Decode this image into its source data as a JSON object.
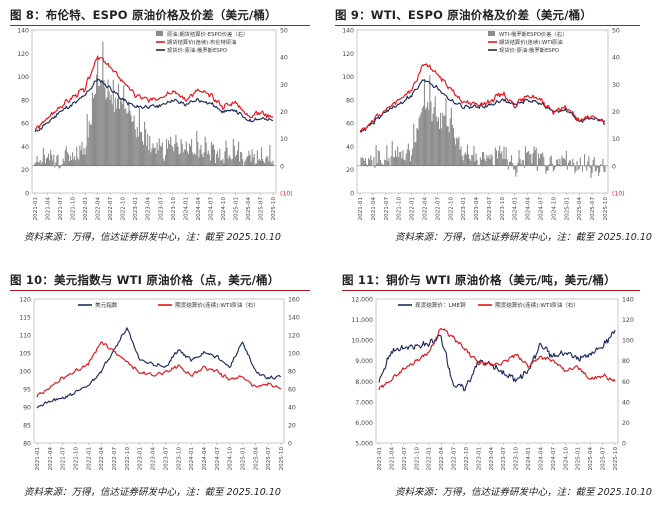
{
  "charts": [
    {
      "title": "图 8：布伦特、ESPO 原油价格及价差（美元/桶）",
      "source": "资料来源：万得，信达证券研发中心，注：截至 2025.10.10"
    },
    {
      "title": "图 9：WTI、ESPO 原油价格及价差（美元/桶）",
      "source": "资料来源：万得，信达证券研发中心，注：截至 2025.10.10"
    },
    {
      "title": "图 10：美元指数与 WTI 原油价格（点，美元/桶）",
      "source": "资料来源：万得，信达证券研发中心，注：截至 2025.10.10"
    },
    {
      "title": "图 11：铜价与 WTI 原油价格（美元/吨，美元/桶）",
      "source": "资料来源：万得，信达证券研发中心，注：截至 2025.10.10"
    }
  ],
  "colors": {
    "red": "#e8141b",
    "navy": "#1c2b5e",
    "gray": "#8c8c8c",
    "title_rule": "#b0161c"
  },
  "chart_data": [
    {
      "type": "line",
      "subtype": "bar-line combo",
      "x": [
        "2021-01",
        "2021-04",
        "2021-07",
        "2021-10",
        "2022-01",
        "2022-04",
        "2022-07",
        "2022-10",
        "2023-01",
        "2023-04",
        "2023-07",
        "2023-10",
        "2024-01",
        "2024-04",
        "2024-07",
        "2024-10",
        "2025-01",
        "2025-04",
        "2025-07",
        "2025-10"
      ],
      "ylim_left": [
        0,
        140
      ],
      "yticks_left": [
        "0",
        "20",
        "40",
        "60",
        "80",
        "100",
        "120",
        "140"
      ],
      "ylim_right": [
        -10,
        50
      ],
      "yticks_right": [
        "(10)",
        "0",
        "10",
        "20",
        "30",
        "40",
        "50"
      ],
      "series": [
        {
          "name": "现货价:原油:俄罗斯ESPO",
          "axis": "left",
          "color": "navy",
          "values": [
            52,
            60,
            70,
            76,
            84,
            98,
            90,
            80,
            74,
            74,
            75,
            80,
            76,
            80,
            77,
            70,
            71,
            62,
            64,
            62
          ]
        },
        {
          "name": "期货结算价(连续):布伦特原油",
          "axis": "left",
          "color": "red",
          "values": [
            54,
            64,
            74,
            82,
            90,
            118,
            108,
            96,
            84,
            80,
            82,
            88,
            80,
            88,
            84,
            74,
            78,
            66,
            69,
            65
          ]
        },
        {
          "name": "原油:期货结算价-ESPO价差（右）",
          "axis": "right",
          "color": "gray",
          "type": "bar",
          "values": [
            2,
            3,
            2,
            4,
            5,
            32,
            24,
            22,
            14,
            8,
            6,
            8,
            6,
            6,
            5,
            4,
            5,
            3,
            3,
            3
          ]
        }
      ],
      "legend": [
        "原油:期货结算价-ESPO价差（右）",
        "期货结算价(连续):布伦特原油",
        "现货价:原油:俄罗斯ESPO"
      ]
    },
    {
      "type": "line",
      "subtype": "bar-line combo",
      "x": [
        "2021-01",
        "2021-04",
        "2021-07",
        "2021-10",
        "2022-01",
        "2022-04",
        "2022-07",
        "2022-10",
        "2023-01",
        "2023-04",
        "2023-07",
        "2023-10",
        "2024-01",
        "2024-04",
        "2024-07",
        "2024-10",
        "2025-01",
        "2025-04",
        "2025-07",
        "2025-10"
      ],
      "ylim_left": [
        0,
        140
      ],
      "yticks_left": [
        "0",
        "20",
        "40",
        "60",
        "80",
        "100",
        "120",
        "140"
      ],
      "ylim_right": [
        -10,
        50
      ],
      "yticks_right": [
        "(10)",
        "0",
        "10",
        "20",
        "30",
        "40",
        "50"
      ],
      "series": [
        {
          "name": "现货价:原油:俄罗斯ESPO",
          "axis": "left",
          "color": "navy",
          "values": [
            52,
            60,
            70,
            76,
            84,
            98,
            90,
            80,
            74,
            74,
            75,
            80,
            76,
            80,
            77,
            70,
            71,
            62,
            64,
            62
          ]
        },
        {
          "name": "期货结算价(连续):WTI原油",
          "axis": "left",
          "color": "red",
          "values": [
            52,
            62,
            72,
            80,
            88,
            112,
            102,
            90,
            78,
            76,
            78,
            86,
            75,
            84,
            80,
            70,
            74,
            62,
            66,
            60
          ]
        },
        {
          "name": "WTI-俄罗斯ESPO价差（右）",
          "axis": "right",
          "color": "gray",
          "type": "bar",
          "values": [
            0,
            2,
            2,
            4,
            4,
            24,
            18,
            14,
            6,
            2,
            3,
            6,
            -1,
            4,
            3,
            0,
            3,
            0,
            2,
            -2
          ]
        }
      ],
      "legend": [
        "WTI-俄罗斯ESPO价差（右）",
        "期货结算价(连续):WTI原油",
        "现货价:原油:俄罗斯ESPO"
      ]
    },
    {
      "type": "line",
      "x": [
        "2021-01",
        "2021-04",
        "2021-07",
        "2021-10",
        "2022-01",
        "2022-04",
        "2022-07",
        "2022-10",
        "2023-01",
        "2023-04",
        "2023-07",
        "2023-10",
        "2024-01",
        "2024-04",
        "2024-07",
        "2024-10",
        "2025-01",
        "2025-04",
        "2025-07",
        "2025-10"
      ],
      "ylim_left": [
        80,
        120
      ],
      "yticks_left": [
        "80",
        "85",
        "90",
        "95",
        "100",
        "105",
        "110",
        "115",
        "120"
      ],
      "ylim_right": [
        0,
        160
      ],
      "yticks_right": [
        "0",
        "20",
        "40",
        "60",
        "80",
        "100",
        "120",
        "140",
        "160"
      ],
      "series": [
        {
          "name": "美元指数",
          "axis": "left",
          "color": "navy",
          "values": [
            90,
            91.5,
            92.5,
            94,
            96,
            100,
            106,
            112,
            103,
            102,
            101,
            106,
            103,
            105,
            104,
            101,
            108,
            100,
            98,
            98.5
          ]
        },
        {
          "name": "期货结算价(连续):WTI原油（右）",
          "axis": "right",
          "color": "red",
          "values": [
            52,
            62,
            72,
            80,
            88,
            112,
            102,
            90,
            78,
            76,
            78,
            86,
            75,
            84,
            80,
            70,
            74,
            62,
            66,
            60
          ]
        }
      ],
      "legend": [
        "美元指数",
        "期货结算价(连续):WTI原油（右）"
      ]
    },
    {
      "type": "line",
      "x": [
        "2021-01",
        "2021-04",
        "2021-07",
        "2021-10",
        "2022-01",
        "2022-04",
        "2022-07",
        "2022-10",
        "2023-01",
        "2023-04",
        "2023-07",
        "2023-10",
        "2024-01",
        "2024-04",
        "2024-07",
        "2024-10",
        "2025-01",
        "2025-04",
        "2025-07",
        "2025-10"
      ],
      "ylim_left": [
        5000,
        12000
      ],
      "yticks_left": [
        "5,000",
        "6,000",
        "7,000",
        "8,000",
        "9,000",
        "10,000",
        "11,000",
        "12,000"
      ],
      "ylim_right": [
        0,
        140
      ],
      "yticks_right": [
        "0",
        "20",
        "40",
        "60",
        "80",
        "100",
        "120",
        "140"
      ],
      "series": [
        {
          "name": "现货结算价：LME铜",
          "axis": "left",
          "color": "navy",
          "values": [
            8000,
            9500,
            9600,
            9700,
            9800,
            10200,
            7800,
            7700,
            9000,
            8800,
            8400,
            8100,
            8500,
            9800,
            9200,
            9400,
            9100,
            9300,
            9700,
            10500
          ]
        },
        {
          "name": "期货结算价(连续):WTI原油（右）",
          "axis": "right",
          "color": "red",
          "values": [
            52,
            62,
            72,
            80,
            88,
            112,
            102,
            90,
            78,
            76,
            78,
            86,
            75,
            84,
            80,
            70,
            74,
            62,
            66,
            60
          ]
        }
      ],
      "legend": [
        "现货结算价：LME铜",
        "期货结算价(连续):WTI原油（右）"
      ]
    }
  ]
}
